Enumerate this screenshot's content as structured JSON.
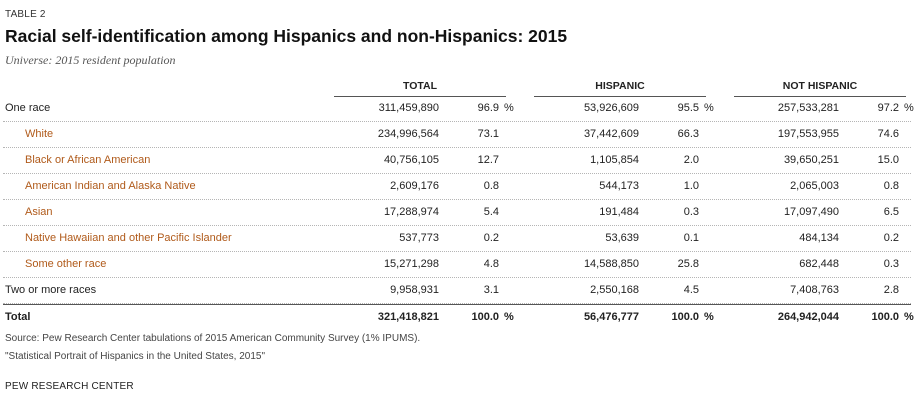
{
  "kicker": "TABLE 2",
  "title": "Racial self-identification among Hispanics and non-Hispanics: 2015",
  "universe": "Universe: 2015 resident population",
  "columns": {
    "total": "TOTAL",
    "hispanic": "HISPANIC",
    "not_hispanic": "NOT HISPANIC"
  },
  "pct_sign": "%",
  "rows": [
    {
      "label": "One race",
      "total_n": "311,459,890",
      "total_p": "96.9",
      "hisp_n": "53,926,609",
      "hisp_p": "95.5",
      "nonh_n": "257,533,281",
      "nonh_p": "97.2"
    },
    {
      "label": "White",
      "total_n": "234,996,564",
      "total_p": "73.1",
      "hisp_n": "37,442,609",
      "hisp_p": "66.3",
      "nonh_n": "197,553,955",
      "nonh_p": "74.6"
    },
    {
      "label": "Black or African American",
      "total_n": "40,756,105",
      "total_p": "12.7",
      "hisp_n": "1,105,854",
      "hisp_p": "2.0",
      "nonh_n": "39,650,251",
      "nonh_p": "15.0"
    },
    {
      "label": "American Indian and Alaska Native",
      "total_n": "2,609,176",
      "total_p": "0.8",
      "hisp_n": "544,173",
      "hisp_p": "1.0",
      "nonh_n": "2,065,003",
      "nonh_p": "0.8"
    },
    {
      "label": "Asian",
      "total_n": "17,288,974",
      "total_p": "5.4",
      "hisp_n": "191,484",
      "hisp_p": "0.3",
      "nonh_n": "17,097,490",
      "nonh_p": "6.5"
    },
    {
      "label": "Native Hawaiian and other Pacific Islander",
      "total_n": "537,773",
      "total_p": "0.2",
      "hisp_n": "53,639",
      "hisp_p": "0.1",
      "nonh_n": "484,134",
      "nonh_p": "0.2"
    },
    {
      "label": "Some other race",
      "total_n": "15,271,298",
      "total_p": "4.8",
      "hisp_n": "14,588,850",
      "hisp_p": "25.8",
      "nonh_n": "682,448",
      "nonh_p": "0.3"
    },
    {
      "label": "Two or more races",
      "total_n": "9,958,931",
      "total_p": "3.1",
      "hisp_n": "2,550,168",
      "hisp_p": "4.5",
      "nonh_n": "7,408,763",
      "nonh_p": "2.8"
    },
    {
      "label": "Total",
      "total_n": "321,418,821",
      "total_p": "100.0",
      "hisp_n": "56,476,777",
      "hisp_p": "100.0",
      "nonh_n": "264,942,044",
      "nonh_p": "100.0"
    }
  ],
  "source_line1": "Source: Pew Research Center tabulations of 2015 American Community Survey (1% IPUMS).",
  "source_line2": "\"Statistical Portrait of Hispanics in the United States, 2015\"",
  "organization": "PEW RESEARCH CENTER"
}
